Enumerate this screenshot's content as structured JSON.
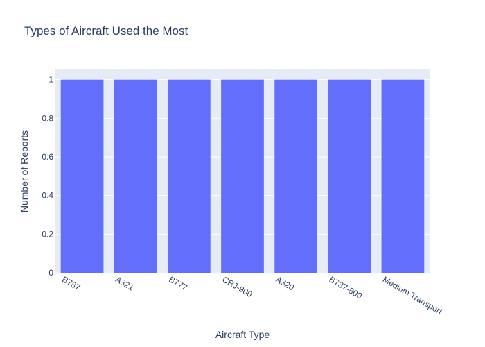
{
  "chart_data": {
    "type": "bar",
    "title": "Types of Aircraft Used the Most",
    "xlabel": "Aircraft Type",
    "ylabel": "Number of Reports",
    "categories": [
      "B787",
      "A321",
      "B777",
      "CRJ-900",
      "A320",
      "B737-800",
      "Medium Transport"
    ],
    "values": [
      1,
      1,
      1,
      1,
      1,
      1,
      1
    ],
    "ylim": [
      0,
      1.0526
    ],
    "yticks": [
      "0",
      "0.2",
      "0.4",
      "0.6",
      "0.8",
      "1"
    ],
    "ytick_values": [
      0,
      0.2,
      0.4,
      0.6,
      0.8,
      1
    ],
    "grid": true,
    "legend": "none"
  },
  "colors": {
    "bar": "#636efa",
    "plot_background": "#e5ecf6",
    "gridline": "#ffffff",
    "text": "#2a3f5f"
  }
}
